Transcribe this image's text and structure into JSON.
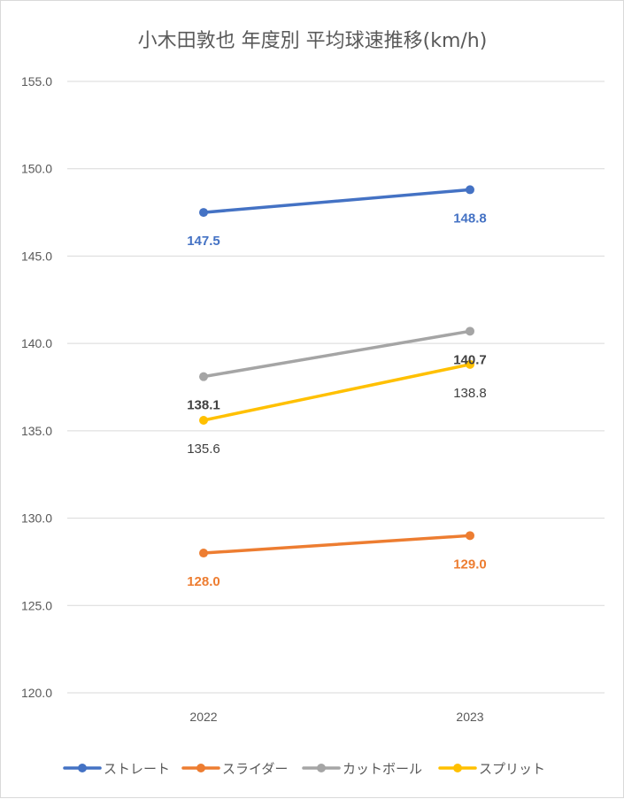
{
  "chart_data": {
    "type": "line",
    "title": "小木田敦也 年度別 平均球速推移(km/h)",
    "categories": [
      "2022",
      "2023"
    ],
    "ylim": [
      120.0,
      155.0
    ],
    "yticks": [
      "120.0",
      "125.0",
      "130.0",
      "135.0",
      "140.0",
      "145.0",
      "150.0",
      "155.0"
    ],
    "grid": true,
    "legend_position": "bottom",
    "series": [
      {
        "name": "ストレート",
        "color": "#4472C4",
        "values": [
          147.5,
          148.8
        ],
        "labels": [
          "147.5",
          "148.8"
        ],
        "label_pos": "below",
        "label_color": "#4472C4",
        "label_bold": true
      },
      {
        "name": "スライダー",
        "color": "#ED7D31",
        "values": [
          128.0,
          129.0
        ],
        "labels": [
          "128.0",
          "129.0"
        ],
        "label_pos": "below",
        "label_color": "#ED7D31",
        "label_bold": true
      },
      {
        "name": "カットボール",
        "color": "#A5A5A5",
        "values": [
          138.1,
          140.7
        ],
        "labels": [
          "138.1",
          "140.7"
        ],
        "label_pos": "below",
        "label_color": "#404040",
        "label_bold": true
      },
      {
        "name": "スプリット",
        "color": "#FFC000",
        "values": [
          135.6,
          138.8
        ],
        "labels": [
          "135.6",
          "138.8"
        ],
        "label_pos": "below",
        "label_color": "#404040",
        "label_bold": false
      }
    ]
  }
}
